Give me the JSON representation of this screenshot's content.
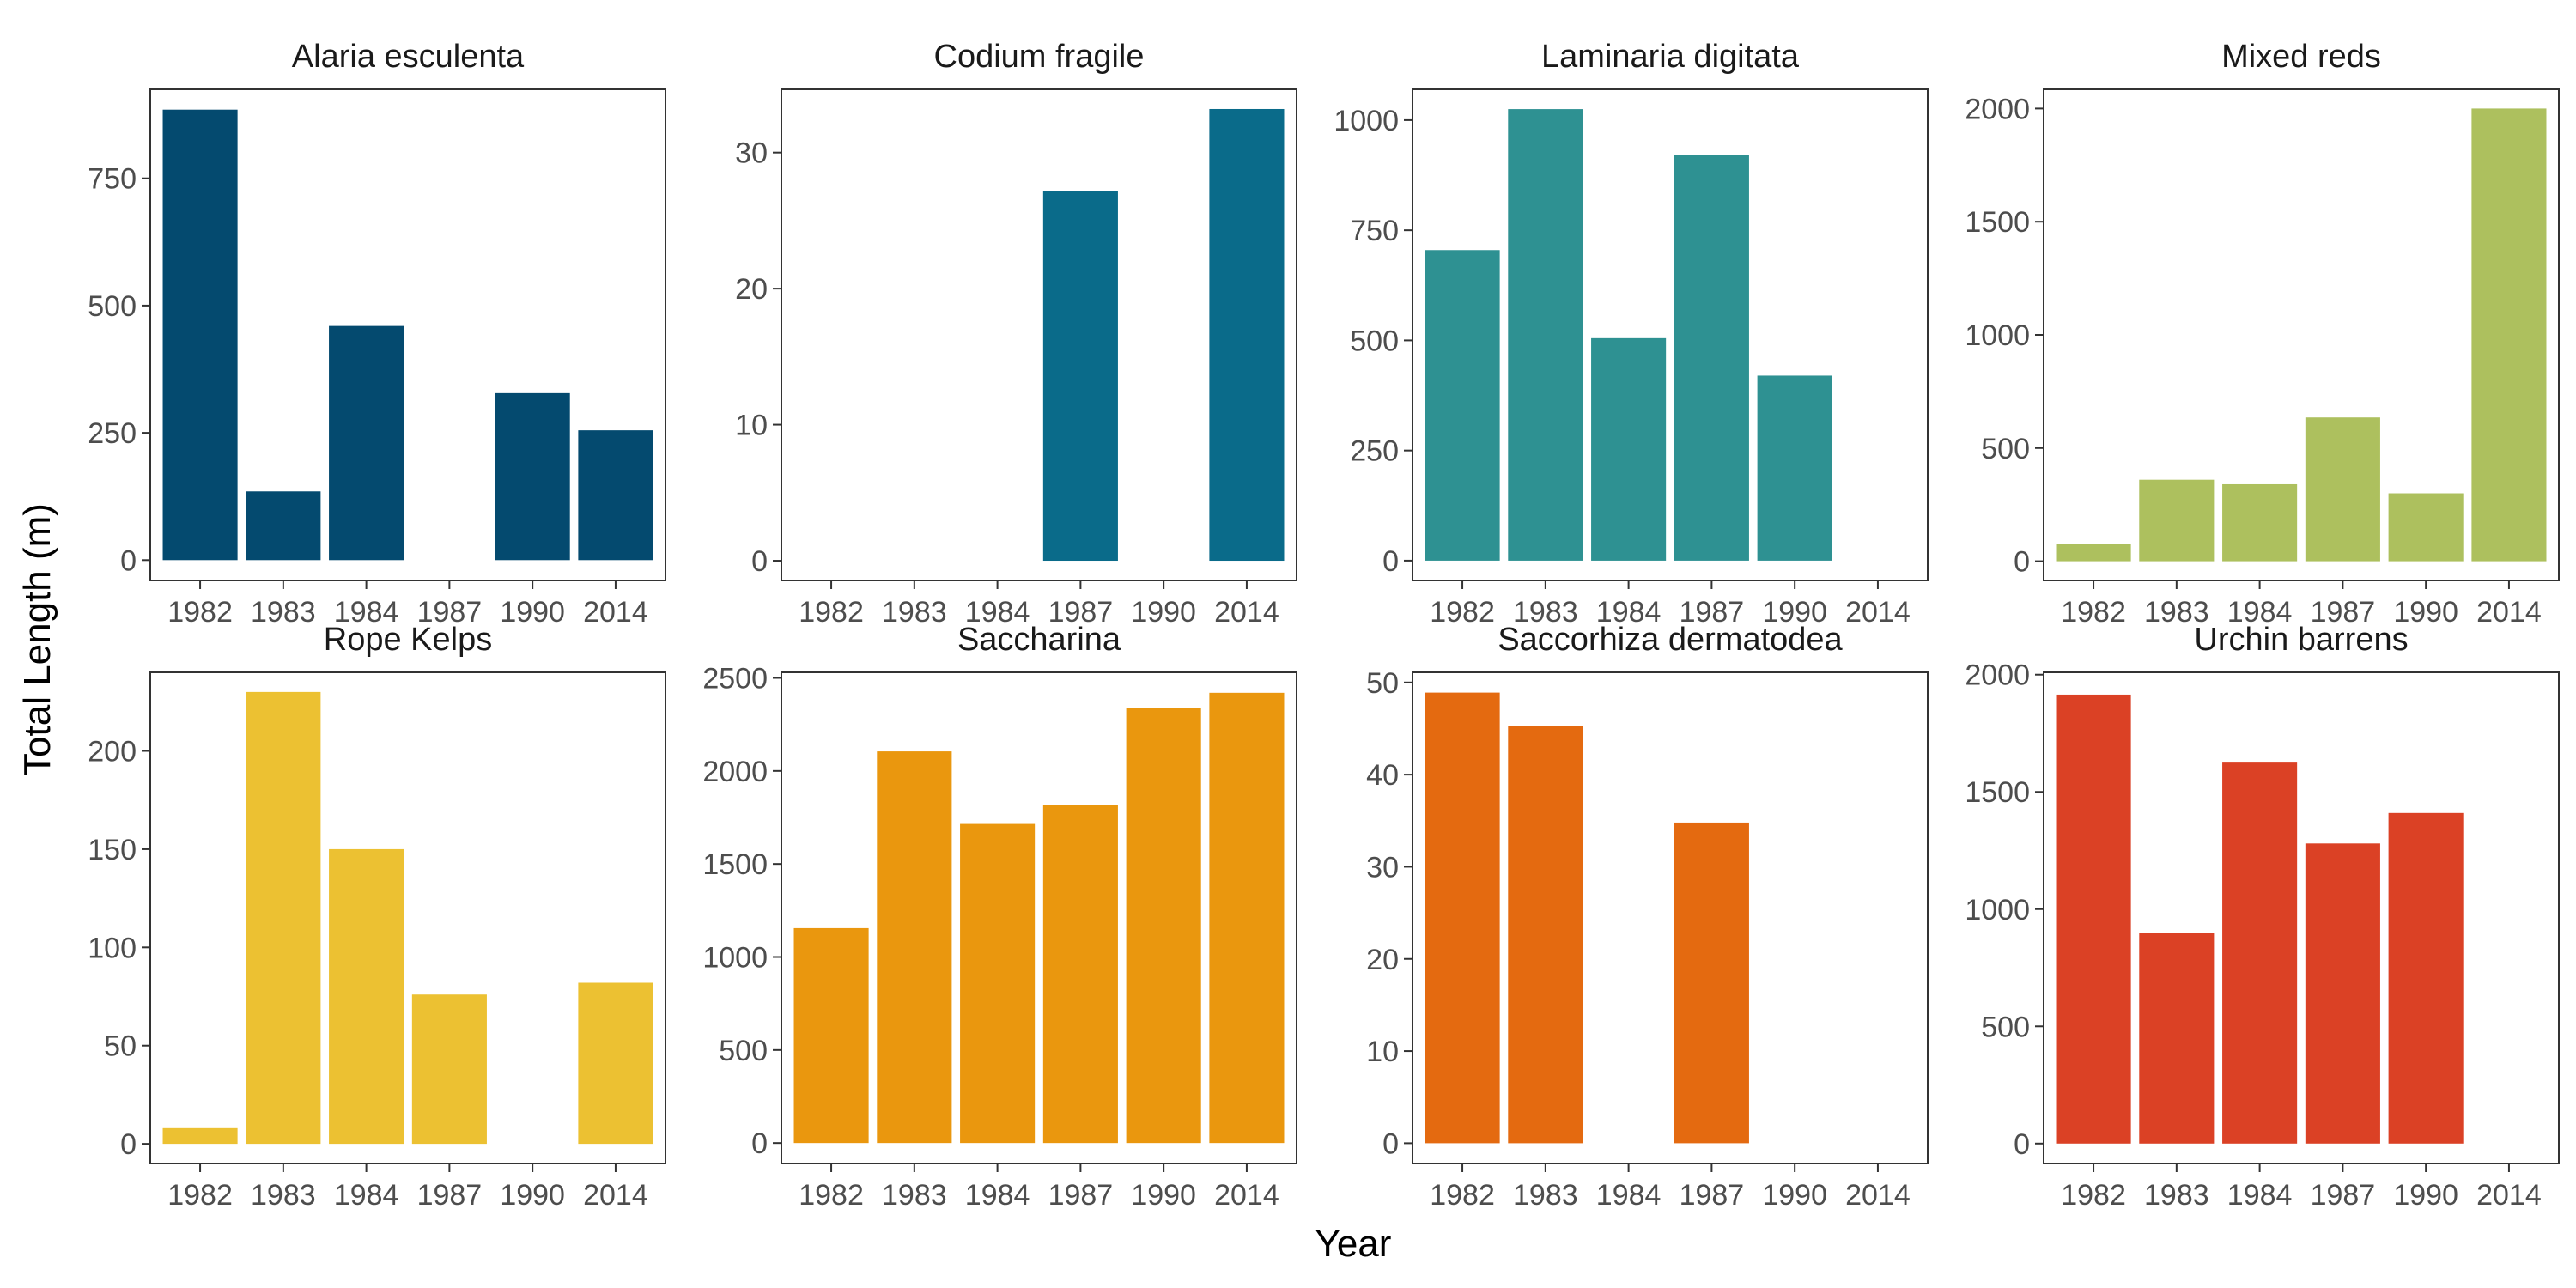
{
  "axes": {
    "xlabel": "Year",
    "ylabel": "Total Length (m)"
  },
  "categories": [
    "1982",
    "1983",
    "1984",
    "1987",
    "1990",
    "2014"
  ],
  "chart_data": [
    {
      "type": "bar",
      "title": "Alaria esculenta",
      "color": "#044a6f",
      "categories": [
        "1982",
        "1983",
        "1984",
        "1987",
        "1990",
        "2014"
      ],
      "values": [
        885,
        135,
        460,
        null,
        328,
        255
      ],
      "ylim": [
        -40,
        925
      ],
      "yticks": [
        0,
        250,
        500,
        750
      ]
    },
    {
      "type": "bar",
      "title": "Codium fragile",
      "color": "#0a6b8a",
      "categories": [
        "1982",
        "1983",
        "1984",
        "1987",
        "1990",
        "2014"
      ],
      "values": [
        null,
        null,
        null,
        27.2,
        null,
        33.2
      ],
      "ylim": [
        -1.45,
        34.65
      ],
      "yticks": [
        0,
        10,
        20,
        30
      ]
    },
    {
      "type": "bar",
      "title": "Laminaria digitata",
      "color": "#2e9192",
      "categories": [
        "1982",
        "1983",
        "1984",
        "1987",
        "1990",
        "2014"
      ],
      "values": [
        705,
        1025,
        505,
        920,
        420,
        null
      ],
      "ylim": [
        -45,
        1070
      ],
      "yticks": [
        0,
        250,
        500,
        750,
        1000
      ]
    },
    {
      "type": "bar",
      "title": "Mixed reds",
      "color": "#adc05e",
      "categories": [
        "1982",
        "1983",
        "1984",
        "1987",
        "1990",
        "2014"
      ],
      "values": [
        75,
        360,
        340,
        635,
        300,
        2000
      ],
      "ylim": [
        -85,
        2085
      ],
      "yticks": [
        0,
        500,
        1000,
        1500,
        2000
      ]
    },
    {
      "type": "bar",
      "title": "Rope Kelps",
      "color": "#ecc132",
      "categories": [
        "1982",
        "1983",
        "1984",
        "1987",
        "1990",
        "2014"
      ],
      "values": [
        8,
        230,
        150,
        76,
        null,
        82
      ],
      "ylim": [
        -10,
        240
      ],
      "yticks": [
        0,
        50,
        100,
        150,
        200
      ]
    },
    {
      "type": "bar",
      "title": "Saccharina",
      "color": "#ea970e",
      "categories": [
        "1982",
        "1983",
        "1984",
        "1987",
        "1990",
        "2014"
      ],
      "values": [
        1155,
        2105,
        1715,
        1815,
        2340,
        2420
      ],
      "ylim": [
        -110,
        2530
      ],
      "yticks": [
        0,
        500,
        1000,
        1500,
        2000,
        2500
      ]
    },
    {
      "type": "bar",
      "title": "Saccorhiza dermatodea",
      "color": "#e46a10",
      "categories": [
        "1982",
        "1983",
        "1984",
        "1987",
        "1990",
        "2014"
      ],
      "values": [
        48.9,
        45.3,
        null,
        34.8,
        null,
        null
      ],
      "ylim": [
        -2.2,
        51.1
      ],
      "yticks": [
        0,
        10,
        20,
        30,
        40,
        50
      ]
    },
    {
      "type": "bar",
      "title": "Urchin barrens",
      "color": "#db4125",
      "categories": [
        "1982",
        "1983",
        "1984",
        "1987",
        "1990",
        "2014"
      ],
      "values": [
        1915,
        900,
        1625,
        1280,
        1410,
        null
      ],
      "ylim": [
        -85,
        2010
      ],
      "yticks": [
        0,
        500,
        1000,
        1500,
        2000
      ]
    }
  ]
}
